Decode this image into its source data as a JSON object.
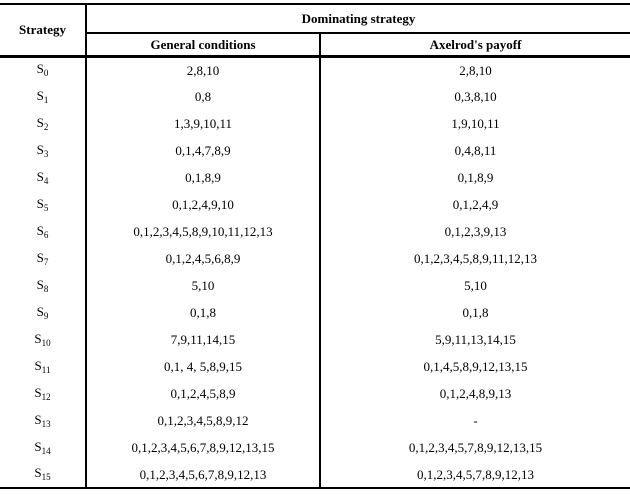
{
  "table": {
    "headers": {
      "strategy": "Strategy",
      "dominating": "Dominating strategy",
      "general": "General conditions",
      "axelrod": "Axelrod's payoff"
    },
    "row_label_base": "S",
    "rows": [
      {
        "sub": "0",
        "general": "2,8,10",
        "axelrod": "2,8,10"
      },
      {
        "sub": "1",
        "general": "0,8",
        "axelrod": "0,3,8,10"
      },
      {
        "sub": "2",
        "general": "1,3,9,10,11",
        "axelrod": "1,9,10,11"
      },
      {
        "sub": "3",
        "general": "0,1,4,7,8,9",
        "axelrod": "0,4,8,11"
      },
      {
        "sub": "4",
        "general": "0,1,8,9",
        "axelrod": "0,1,8,9"
      },
      {
        "sub": "5",
        "general": "0,1,2,4,9,10",
        "axelrod": "0,1,2,4,9"
      },
      {
        "sub": "6",
        "general": "0,1,2,3,4,5,8,9,10,11,12,13",
        "axelrod": "0,1,2,3,9,13"
      },
      {
        "sub": "7",
        "general": "0,1,2,4,5,6,8,9",
        "axelrod": "0,1,2,3,4,5,8,9,11,12,13"
      },
      {
        "sub": "8",
        "general": "5,10",
        "axelrod": "5,10"
      },
      {
        "sub": "9",
        "general": "0,1,8",
        "axelrod": "0,1,8"
      },
      {
        "sub": "10",
        "general": "7,9,11,14,15",
        "axelrod": "5,9,11,13,14,15"
      },
      {
        "sub": "11",
        "general": "0,1, 4, 5,8,9,15",
        "axelrod": "0,1,4,5,8,9,12,13,15"
      },
      {
        "sub": "12",
        "general": "0,1,2,4,5,8,9",
        "axelrod": "0,1,2,4,8,9,13"
      },
      {
        "sub": "13",
        "general": "0,1,2,3,4,5,8,9,12",
        "axelrod": "-"
      },
      {
        "sub": "14",
        "general": "0,1,2,3,4,5,6,7,8,9,12,13,15",
        "axelrod": "0,1,2,3,4,5,7,8,9,12,13,15"
      },
      {
        "sub": "15",
        "general": "0,1,2,3,4,5,6,7,8,9,12,13",
        "axelrod": "0,1,2,3,4,5,7,8,9,12,13"
      }
    ]
  }
}
